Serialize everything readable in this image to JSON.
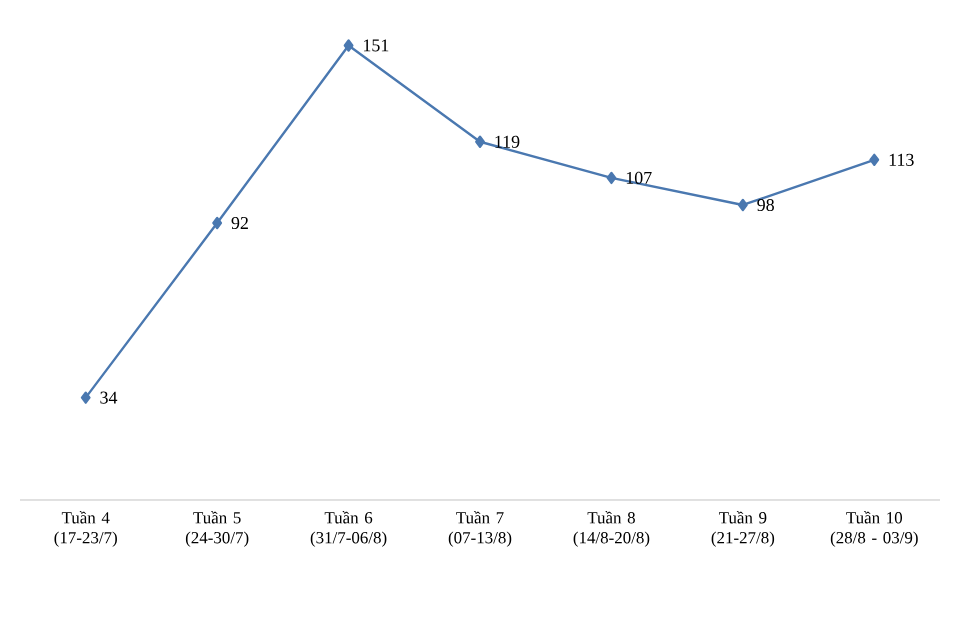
{
  "chart_data": {
    "type": "line",
    "categories": [
      "Tuần 4 (17-23/7)",
      "Tuần 5 (24-30/7)",
      "Tuần 6 (31/7-06/8)",
      "Tuần 7 (07-13/8)",
      "Tuần 8 (14/8-20/8)",
      "Tuần 9 (21-27/8)",
      "Tuần 10 (28/8 - 03/9)"
    ],
    "series": [
      {
        "color": "#4a78b0",
        "values": [
          34,
          92,
          151,
          119,
          107,
          98,
          113
        ]
      }
    ],
    "data_labels": true,
    "marker": "diamond",
    "line_style": "solid"
  }
}
